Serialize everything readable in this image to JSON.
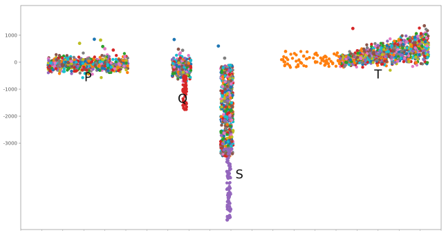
{
  "chart_data": {
    "type": "scatter",
    "title": "",
    "xlabel": "",
    "ylabel": "",
    "xlim": [
      0,
      100
    ],
    "ylim": [
      -6200,
      2100
    ],
    "y_ticks": [
      {
        "value": 1000,
        "label": "1000"
      },
      {
        "value": 0,
        "label": "0"
      },
      {
        "value": -1000,
        "label": "-1000"
      },
      {
        "value": -2000,
        "label": "-2000"
      },
      {
        "value": -3000,
        "label": "-3000"
      }
    ],
    "grid": false,
    "legend": "none",
    "annotations": [
      {
        "text": "P",
        "x": 16,
        "y": -700
      },
      {
        "text": "Q",
        "x": 38.5,
        "y": -1500
      },
      {
        "text": "S",
        "x": 52,
        "y": -4300
      },
      {
        "text": "T",
        "x": 85,
        "y": -600
      }
    ],
    "palette": [
      "#1f77b4",
      "#ff7f0e",
      "#2ca02c",
      "#d62728",
      "#9467bd",
      "#8c564b",
      "#e377c2",
      "#7f7f7f",
      "#bcbd22",
      "#17becf"
    ],
    "clusters": [
      {
        "name": "P",
        "dense": {
          "x_range": [
            6.5,
            25.5
          ],
          "y_center": -100,
          "y_spread": 300,
          "count": 650
        },
        "sparse": [
          {
            "x": 17.5,
            "y": 850,
            "color": "#1f77b4"
          },
          {
            "x": 19,
            "y": 820,
            "color": "#bcbd22"
          },
          {
            "x": 19.5,
            "y": 580,
            "color": "#2ca02c"
          },
          {
            "x": 14,
            "y": 700,
            "color": "#bcbd22"
          },
          {
            "x": 20,
            "y": 500,
            "color": "#e377c2"
          },
          {
            "x": 22,
            "y": 450,
            "color": "#d62728"
          }
        ]
      },
      {
        "name": "Q",
        "dense": {
          "x_range": [
            36,
            40.5
          ],
          "y_center": -200,
          "y_spread": 450,
          "count": 260
        },
        "tail": {
          "x_range": [
            38.5,
            39.5
          ],
          "y_range": [
            -1800,
            -500
          ],
          "count": 60,
          "color": "#d62728"
        },
        "sparse": [
          {
            "x": 36.5,
            "y": 840,
            "color": "#1f77b4"
          },
          {
            "x": 37.5,
            "y": 480,
            "color": "#8c564b"
          },
          {
            "x": 38.5,
            "y": 440,
            "color": "#7f7f7f"
          }
        ]
      },
      {
        "name": "S",
        "dense": {
          "x_range": [
            47.5,
            50.5
          ],
          "y_center": -1800,
          "y_spread": 1700,
          "count": 520
        },
        "tail": {
          "x_range": [
            49,
            50
          ],
          "y_range": [
            -5900,
            -3200
          ],
          "count": 90,
          "color": "#9467bd"
        },
        "sparse": [
          {
            "x": 47,
            "y": 600,
            "color": "#1f77b4"
          },
          {
            "x": 48.5,
            "y": 150,
            "color": "#7f7f7f"
          }
        ]
      },
      {
        "name": "T",
        "dense": {
          "x_range": [
            76,
            97
          ],
          "y_center": 500,
          "y_spread": 700,
          "count": 950
        },
        "tail": {
          "x_range": [
            62,
            76
          ],
          "y_range": [
            -200,
            400
          ],
          "count": 70,
          "color": "#ff7f0e"
        },
        "sparse": [
          {
            "x": 79,
            "y": 1250,
            "color": "#d62728"
          },
          {
            "x": 96,
            "y": 1350,
            "color": "#8c564b"
          },
          {
            "x": 63,
            "y": 400,
            "color": "#ff7f0e"
          },
          {
            "x": 70,
            "y": 300,
            "color": "#ff7f0e"
          }
        ]
      }
    ]
  }
}
